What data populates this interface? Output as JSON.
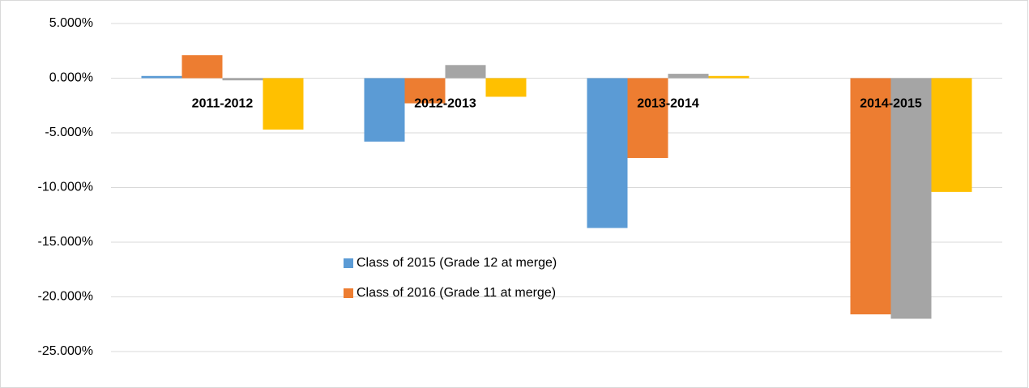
{
  "chart_data": {
    "type": "bar",
    "categories": [
      "2011-2012",
      "2012-2013",
      "2013-2014",
      "2014-2015"
    ],
    "series": [
      {
        "name": "Class of 2015 (Grade 12 at merge)",
        "color": "#5b9bd5",
        "values": [
          0.2,
          -5.8,
          -13.7,
          null
        ]
      },
      {
        "name": "Class of 2016 (Grade 11 at merge)",
        "color": "#ed7d31",
        "values": [
          2.1,
          -2.3,
          -7.3,
          -21.6
        ]
      },
      {
        "color": "#a5a5a5",
        "values": [
          -0.2,
          1.2,
          0.4,
          -22.0
        ]
      },
      {
        "color": "#ffc000",
        "values": [
          -4.7,
          -1.7,
          0.2,
          -10.4
        ]
      }
    ],
    "ylim": [
      -25,
      5
    ],
    "yticks": [
      {
        "value": 5,
        "label": "5.000%"
      },
      {
        "value": 0,
        "label": "0.000%"
      },
      {
        "value": -5,
        "label": "-5.000%"
      },
      {
        "value": -10,
        "label": "-10.000%"
      },
      {
        "value": -15,
        "label": "-15.000%"
      },
      {
        "value": -20,
        "label": "-20.000%"
      },
      {
        "value": -25,
        "label": "-25.000%"
      }
    ],
    "grid": true
  }
}
